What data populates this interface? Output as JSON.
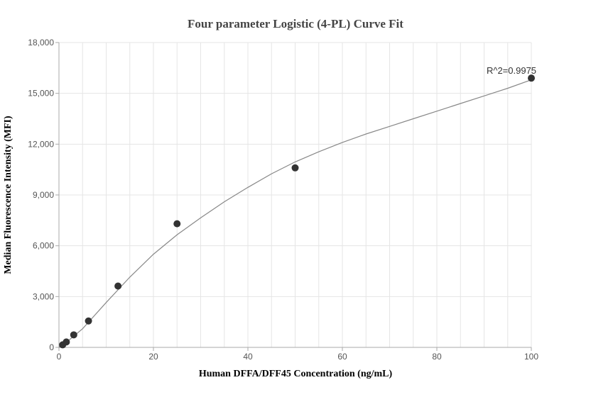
{
  "chart_data": {
    "type": "scatter",
    "title": "Four parameter Logistic (4-PL) Curve Fit",
    "xlabel": "Human DFFA/DFF45 Concentration (ng/mL)",
    "ylabel": "Median Fluorescence Intensity (MFI)",
    "xlim": [
      0,
      100
    ],
    "ylim": [
      0,
      18000
    ],
    "x_ticks": [
      0,
      20,
      40,
      60,
      80,
      100
    ],
    "y_ticks": [
      0,
      3000,
      6000,
      9000,
      12000,
      15000,
      18000
    ],
    "x_tick_labels": [
      "0",
      "20",
      "40",
      "60",
      "80",
      "100"
    ],
    "y_tick_labels": [
      "0",
      "3,000",
      "6,000",
      "9,000",
      "12,000",
      "15,000",
      "18,000"
    ],
    "grid": true,
    "annotation": "R^2=0.9975",
    "series": [
      {
        "kind": "points",
        "x": [
          0.78,
          1.56,
          3.13,
          6.25,
          12.5,
          25,
          50,
          100
        ],
        "y": [
          150,
          320,
          740,
          1560,
          3620,
          7300,
          10600,
          15900
        ]
      },
      {
        "kind": "fit-curve",
        "x": [
          0,
          2,
          5,
          10,
          15,
          20,
          25,
          30,
          35,
          40,
          45,
          50,
          55,
          60,
          65,
          70,
          75,
          80,
          85,
          90,
          95,
          100
        ],
        "y": [
          0,
          400,
          1100,
          2650,
          4150,
          5500,
          6650,
          7650,
          8600,
          9450,
          10250,
          10950,
          11550,
          12100,
          12600,
          13050,
          13500,
          13950,
          14400,
          14850,
          15300,
          15800
        ]
      }
    ],
    "colors": {
      "points": "#333333",
      "curve": "#888888",
      "grid": "#e5e5e5",
      "axis": "#aaaaaa"
    }
  }
}
